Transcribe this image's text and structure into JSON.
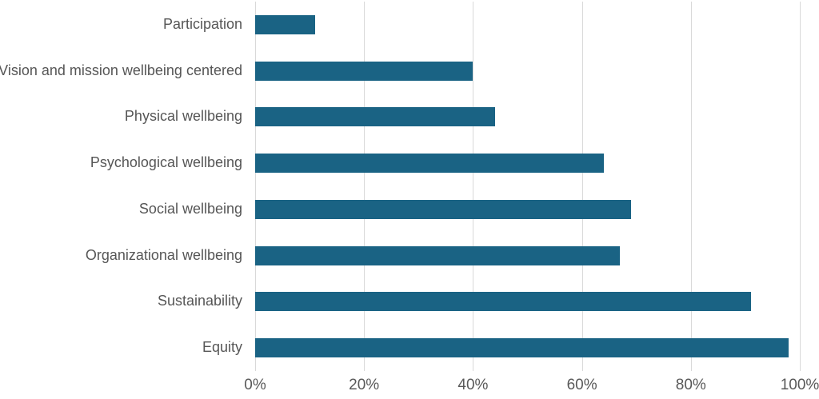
{
  "chart_data": {
    "type": "bar",
    "orientation": "horizontal",
    "title": "",
    "xlabel": "",
    "ylabel": "",
    "categories": [
      "Participation",
      "Vision and mission wellbeing centered",
      "Physical wellbeing",
      "Psychological wellbeing",
      "Social wellbeing",
      "Organizational wellbeing",
      "Sustainability",
      "Equity"
    ],
    "values": [
      11,
      40,
      44,
      64,
      69,
      67,
      91,
      98
    ],
    "unit": "%",
    "xlim": [
      0,
      100
    ],
    "x_ticks": [
      0,
      20,
      40,
      60,
      80,
      100
    ],
    "x_tick_labels": [
      "0%",
      "20%",
      "40%",
      "60%",
      "80%",
      "100%"
    ],
    "grid": "vertical-gridlines-on",
    "legend": "none",
    "colors": {
      "bar": "#1a6384",
      "gridline": "#d9d9d9",
      "category_label": "#565656",
      "tick_label": "#595959",
      "background": "#ffffff"
    }
  }
}
